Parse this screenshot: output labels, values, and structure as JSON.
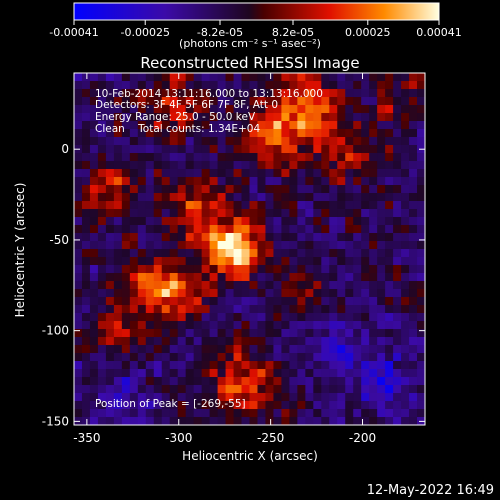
{
  "chart_data": {
    "type": "heatmap",
    "title": "Reconstructed RHESSI Image",
    "xlabel": "Heliocentric X (arcsec)",
    "ylabel": "Heliocentric Y (arcsec)",
    "xlim": [
      -357,
      -166
    ],
    "ylim": [
      -152,
      42
    ],
    "x_ticks": [
      -350,
      -300,
      -250,
      -200
    ],
    "y_ticks": [
      -150,
      -100,
      -50,
      0
    ],
    "colorbar": {
      "min": -0.00041,
      "max": 0.00041,
      "tick_values": [
        -0.00041,
        -0.00025,
        -8.2e-05,
        8.2e-05,
        0.00025,
        0.00041
      ],
      "tick_labels": [
        "-0.00041",
        "-0.00025",
        "-8.2e-05",
        "8.2e-05",
        "0.00025",
        "0.00041"
      ],
      "units_label": "(photons cm⁻² s⁻¹ asec⁻²)"
    },
    "info": {
      "time_range": "10-Feb-2014 13:11:16.000 to 13:13:16.000",
      "detectors": "Detectors: 3F 4F 5F 6F 7F 8F, Att 0",
      "energy_range": "Energy Range: 25.0 - 50.0 keV",
      "method_counts": "Clean    Total counts: 1.34E+04"
    },
    "peak_annotation": "Position of Peak = [-269,-55]",
    "peak_position": [
      -269,
      -55
    ],
    "sources": [
      {
        "x": -269,
        "y": -55,
        "sigma": 11,
        "amp": 1.0
      },
      {
        "x": -290,
        "y": -35,
        "sigma": 12,
        "amp": 0.45
      },
      {
        "x": -300,
        "y": -80,
        "sigma": 12,
        "amp": 0.55
      },
      {
        "x": -320,
        "y": -75,
        "sigma": 11,
        "amp": 0.45
      },
      {
        "x": -250,
        "y": 10,
        "sigma": 14,
        "amp": 0.55
      },
      {
        "x": -228,
        "y": 25,
        "sigma": 13,
        "amp": 0.5
      },
      {
        "x": -305,
        "y": 25,
        "sigma": 12,
        "amp": 0.45
      },
      {
        "x": -335,
        "y": -20,
        "sigma": 12,
        "amp": 0.45
      },
      {
        "x": -265,
        "y": -130,
        "sigma": 13,
        "amp": 0.55
      },
      {
        "x": -330,
        "y": -100,
        "sigma": 10,
        "amp": 0.35
      },
      {
        "x": -205,
        "y": -5,
        "sigma": 12,
        "amp": 0.4
      },
      {
        "x": -235,
        "y": -75,
        "sigma": 10,
        "amp": 0.25
      },
      {
        "x": -185,
        "y": -130,
        "sigma": 14,
        "amp": -0.25
      },
      {
        "x": -210,
        "y": -110,
        "sigma": 15,
        "amp": -0.25
      },
      {
        "x": -330,
        "y": -135,
        "sigma": 12,
        "amp": -0.2
      },
      {
        "x": -180,
        "y": 30,
        "sigma": 10,
        "amp": 0.3
      }
    ]
  },
  "footer": {
    "timestamp": "12-May-2022 16:49"
  }
}
